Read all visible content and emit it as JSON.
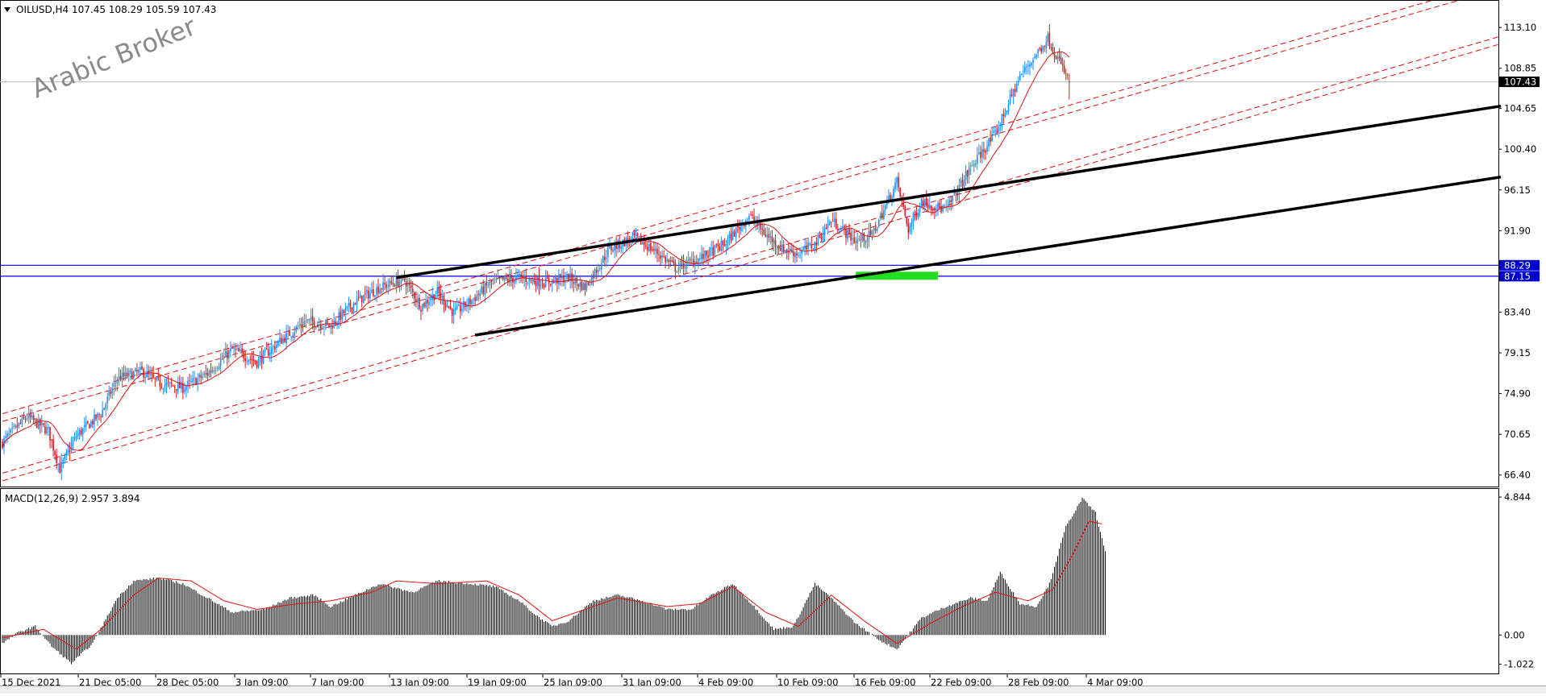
{
  "header": {
    "symbol_line": "OILUSD,H4  107.45 108.29 105.59 107.43",
    "watermark": "Arabic Broker"
  },
  "colors": {
    "bull": "#1e90ff",
    "bear": "#d21e1e",
    "ma": "#e01010",
    "channel": "#e01010",
    "trend": "#000000",
    "level": "#0000cc",
    "zone": "#22dd22",
    "macd_hist": "#000000",
    "macd_signal": "#e01010"
  },
  "chart_data": [
    {
      "type": "candlestick",
      "title": "OILUSD,H4",
      "ohlc_current": {
        "open": 107.45,
        "high": 108.29,
        "low": 105.59,
        "close": 107.43
      },
      "y_ticks": [
        113.1,
        108.85,
        104.65,
        100.4,
        96.15,
        91.9,
        83.4,
        79.15,
        74.9,
        70.65,
        66.4
      ],
      "ylim": [
        65.2,
        115.8
      ],
      "x_ticks": [
        "15 Dec 2021",
        "21 Dec 05:00",
        "28 Dec 05:00",
        "3 Jan 09:00",
        "7 Jan 09:00",
        "13 Jan 09:00",
        "19 Jan 09:00",
        "25 Jan 09:00",
        "31 Jan 09:00",
        "4 Feb 09:00",
        "10 Feb 09:00",
        "16 Feb 09:00",
        "22 Feb 09:00",
        "28 Feb 09:00",
        "4 Mar 09:00"
      ],
      "last_price": 107.43,
      "horizontal_levels": [
        88.29,
        87.15
      ],
      "closes_anchors": [
        [
          0,
          69.8
        ],
        [
          15,
          72.5
        ],
        [
          28,
          71.0
        ],
        [
          35,
          67.0
        ],
        [
          45,
          70.5
        ],
        [
          60,
          72.8
        ],
        [
          70,
          76.5
        ],
        [
          85,
          77.2
        ],
        [
          95,
          76.0
        ],
        [
          110,
          75.5
        ],
        [
          125,
          77.0
        ],
        [
          140,
          79.5
        ],
        [
          155,
          78.2
        ],
        [
          170,
          80.5
        ],
        [
          185,
          82.5
        ],
        [
          200,
          82.0
        ],
        [
          215,
          84.5
        ],
        [
          230,
          86.0
        ],
        [
          245,
          86.8
        ],
        [
          255,
          84.0
        ],
        [
          265,
          85.5
        ],
        [
          275,
          83.3
        ],
        [
          285,
          84.5
        ],
        [
          298,
          86.5
        ],
        [
          315,
          87.0
        ],
        [
          330,
          86.5
        ],
        [
          345,
          87.0
        ],
        [
          355,
          86.0
        ],
        [
          370,
          90.0
        ],
        [
          385,
          91.2
        ],
        [
          400,
          89.5
        ],
        [
          410,
          88.0
        ],
        [
          425,
          89.0
        ],
        [
          440,
          90.5
        ],
        [
          455,
          93.5
        ],
        [
          465,
          91.5
        ],
        [
          475,
          90.0
        ],
        [
          485,
          89.5
        ],
        [
          495,
          90.5
        ],
        [
          505,
          93.0
        ],
        [
          520,
          90.8
        ],
        [
          530,
          91.5
        ],
        [
          545,
          97.0
        ],
        [
          552,
          92.0
        ],
        [
          560,
          95.0
        ],
        [
          575,
          94.0
        ],
        [
          590,
          98.5
        ],
        [
          605,
          102.0
        ],
        [
          620,
          108.0
        ],
        [
          637,
          112.0
        ],
        [
          650,
          107.4
        ]
      ],
      "channels": [
        {
          "from": [
            0,
            72.8
          ],
          "to": [
            913,
            118.0
          ]
        },
        {
          "from": [
            0,
            72.0
          ],
          "to": [
            913,
            117.2
          ]
        },
        {
          "from": [
            0,
            66.6
          ],
          "to": [
            913,
            112.2
          ]
        },
        {
          "from": [
            0,
            65.8
          ],
          "to": [
            913,
            111.4
          ]
        }
      ],
      "trendlines": [
        {
          "from": [
            240,
            87.0
          ],
          "to": [
            913,
            104.9
          ]
        },
        {
          "from": [
            288,
            81.0
          ],
          "to": [
            913,
            97.5
          ]
        }
      ],
      "zone": {
        "x_from": 520,
        "x_to": 570,
        "y_from": 87.15,
        "y_to": 88.29
      }
    },
    {
      "type": "bar",
      "title": "MACD(12,26,9) 2.957 3.894",
      "series": [
        {
          "name": "MACD"
        },
        {
          "name": "Signal"
        }
      ],
      "y_ticks": [
        4.844,
        0.0,
        -1.022
      ],
      "ylim": [
        -1.35,
        5.1
      ],
      "macd_anchors": [
        [
          0,
          -0.3
        ],
        [
          10,
          0.1
        ],
        [
          20,
          0.3
        ],
        [
          30,
          -0.4
        ],
        [
          42,
          -1.0
        ],
        [
          55,
          -0.3
        ],
        [
          70,
          1.3
        ],
        [
          80,
          1.9
        ],
        [
          95,
          2.0
        ],
        [
          110,
          1.8
        ],
        [
          125,
          1.3
        ],
        [
          140,
          0.8
        ],
        [
          160,
          0.9
        ],
        [
          175,
          1.3
        ],
        [
          190,
          1.4
        ],
        [
          200,
          1.0
        ],
        [
          215,
          1.4
        ],
        [
          230,
          1.8
        ],
        [
          250,
          1.5
        ],
        [
          265,
          1.9
        ],
        [
          285,
          1.8
        ],
        [
          300,
          1.7
        ],
        [
          315,
          1.2
        ],
        [
          325,
          0.7
        ],
        [
          335,
          0.3
        ],
        [
          345,
          0.5
        ],
        [
          360,
          1.2
        ],
        [
          375,
          1.4
        ],
        [
          390,
          1.2
        ],
        [
          405,
          0.9
        ],
        [
          420,
          0.9
        ],
        [
          432,
          1.4
        ],
        [
          445,
          1.8
        ],
        [
          458,
          1.0
        ],
        [
          470,
          0.2
        ],
        [
          482,
          0.3
        ],
        [
          495,
          1.8
        ],
        [
          505,
          1.3
        ],
        [
          520,
          0.4
        ],
        [
          535,
          -0.2
        ],
        [
          545,
          -0.5
        ],
        [
          560,
          0.6
        ],
        [
          575,
          1.0
        ],
        [
          590,
          1.3
        ],
        [
          600,
          1.2
        ],
        [
          608,
          2.2
        ],
        [
          620,
          1.1
        ],
        [
          630,
          1.0
        ],
        [
          638,
          1.8
        ],
        [
          648,
          3.8
        ],
        [
          658,
          4.8
        ],
        [
          666,
          4.3
        ],
        [
          672,
          2.9
        ]
      ],
      "signal_anchors": [
        [
          0,
          -0.1
        ],
        [
          25,
          0.2
        ],
        [
          45,
          -0.5
        ],
        [
          60,
          0.2
        ],
        [
          80,
          1.4
        ],
        [
          95,
          2.0
        ],
        [
          115,
          1.9
        ],
        [
          135,
          1.2
        ],
        [
          155,
          0.9
        ],
        [
          180,
          1.1
        ],
        [
          200,
          1.2
        ],
        [
          225,
          1.5
        ],
        [
          240,
          1.9
        ],
        [
          265,
          1.8
        ],
        [
          295,
          1.9
        ],
        [
          315,
          1.4
        ],
        [
          335,
          0.5
        ],
        [
          355,
          0.9
        ],
        [
          375,
          1.3
        ],
        [
          405,
          1.0
        ],
        [
          425,
          1.1
        ],
        [
          445,
          1.7
        ],
        [
          465,
          0.8
        ],
        [
          485,
          0.3
        ],
        [
          505,
          1.4
        ],
        [
          525,
          0.5
        ],
        [
          545,
          -0.3
        ],
        [
          565,
          0.4
        ],
        [
          585,
          1.0
        ],
        [
          605,
          1.5
        ],
        [
          625,
          1.2
        ],
        [
          640,
          1.6
        ],
        [
          652,
          2.8
        ],
        [
          662,
          4.0
        ],
        [
          670,
          3.9
        ]
      ]
    }
  ]
}
